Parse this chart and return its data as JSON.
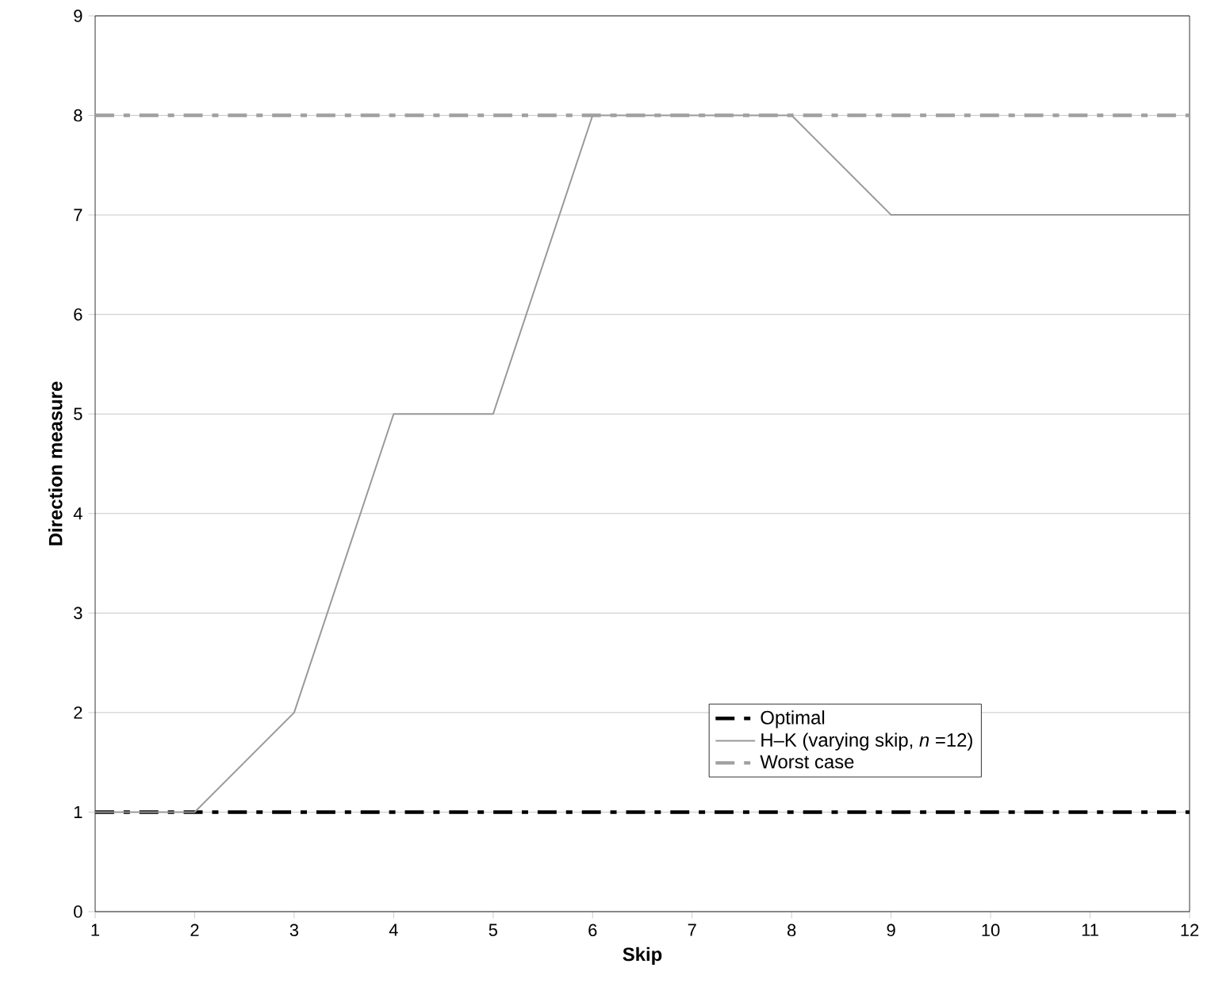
{
  "chart_data": {
    "type": "line",
    "xlabel": "Skip",
    "ylabel": "Direction measure",
    "x": [
      1,
      2,
      3,
      4,
      5,
      6,
      7,
      8,
      9,
      10,
      11,
      12
    ],
    "series": [
      {
        "name": "Optimal",
        "color": "#000000",
        "line_style": "dashed",
        "values": [
          1,
          1,
          1,
          1,
          1,
          1,
          1,
          1,
          1,
          1,
          1,
          1
        ]
      },
      {
        "name": "H–K (varying skip, *n* =12)",
        "color": "#999999",
        "line_style": "solid",
        "values": [
          1,
          1,
          2,
          5,
          5,
          8,
          8,
          8,
          7,
          7,
          7,
          7
        ]
      },
      {
        "name": "Worst case",
        "color": "#a0a0a0",
        "line_style": "dashed",
        "values": [
          8,
          8,
          8,
          8,
          8,
          8,
          8,
          8,
          8,
          8,
          8,
          8
        ]
      }
    ],
    "xlim": [
      1,
      12
    ],
    "ylim": [
      0,
      9
    ],
    "xticks": [
      1,
      2,
      3,
      4,
      5,
      6,
      7,
      8,
      9,
      10,
      11,
      12
    ],
    "yticks": [
      0,
      1,
      2,
      3,
      4,
      5,
      6,
      7,
      8,
      9
    ],
    "grid": "y",
    "legend": "bottom right"
  }
}
